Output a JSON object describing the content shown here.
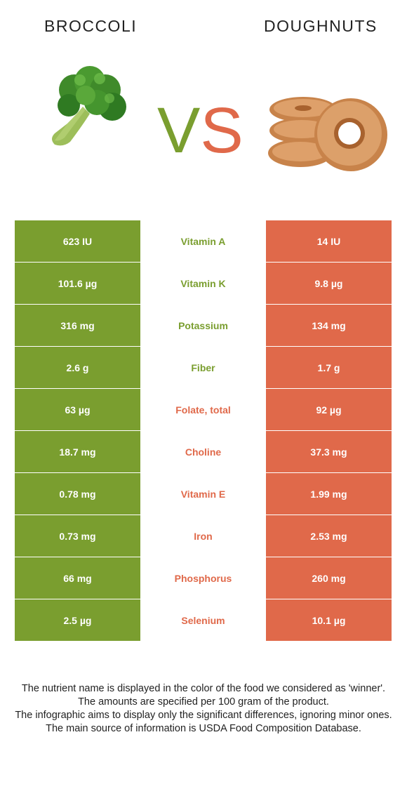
{
  "header": {
    "left_food": "BROCCOLI",
    "right_food": "DOUGHNUTS",
    "vs_v": "V",
    "vs_s": "S"
  },
  "colors": {
    "left_food": "#7a9e2f",
    "right_food": "#e0694a"
  },
  "rows": [
    {
      "left": "623 IU",
      "nutrient": "Vitamin A",
      "right": "14 IU",
      "winner": "left"
    },
    {
      "left": "101.6 µg",
      "nutrient": "Vitamin K",
      "right": "9.8 µg",
      "winner": "left"
    },
    {
      "left": "316 mg",
      "nutrient": "Potassium",
      "right": "134 mg",
      "winner": "left"
    },
    {
      "left": "2.6 g",
      "nutrient": "Fiber",
      "right": "1.7 g",
      "winner": "left"
    },
    {
      "left": "63 µg",
      "nutrient": "Folate, total",
      "right": "92 µg",
      "winner": "right"
    },
    {
      "left": "18.7 mg",
      "nutrient": "Choline",
      "right": "37.3 mg",
      "winner": "right"
    },
    {
      "left": "0.78 mg",
      "nutrient": "Vitamin E",
      "right": "1.99 mg",
      "winner": "right"
    },
    {
      "left": "0.73 mg",
      "nutrient": "Iron",
      "right": "2.53 mg",
      "winner": "right"
    },
    {
      "left": "66 mg",
      "nutrient": "Phosphorus",
      "right": "260 mg",
      "winner": "right"
    },
    {
      "left": "2.5 µg",
      "nutrient": "Selenium",
      "right": "10.1 µg",
      "winner": "right"
    }
  ],
  "footer": {
    "line1": "The nutrient name is displayed in the color of the food we considered as 'winner'.",
    "line2": "The amounts are specified per 100 gram of the product.",
    "line3": "The infographic aims to display only the significant differences, ignoring minor ones.",
    "line4": "The main source of information is USDA Food Composition Database."
  }
}
